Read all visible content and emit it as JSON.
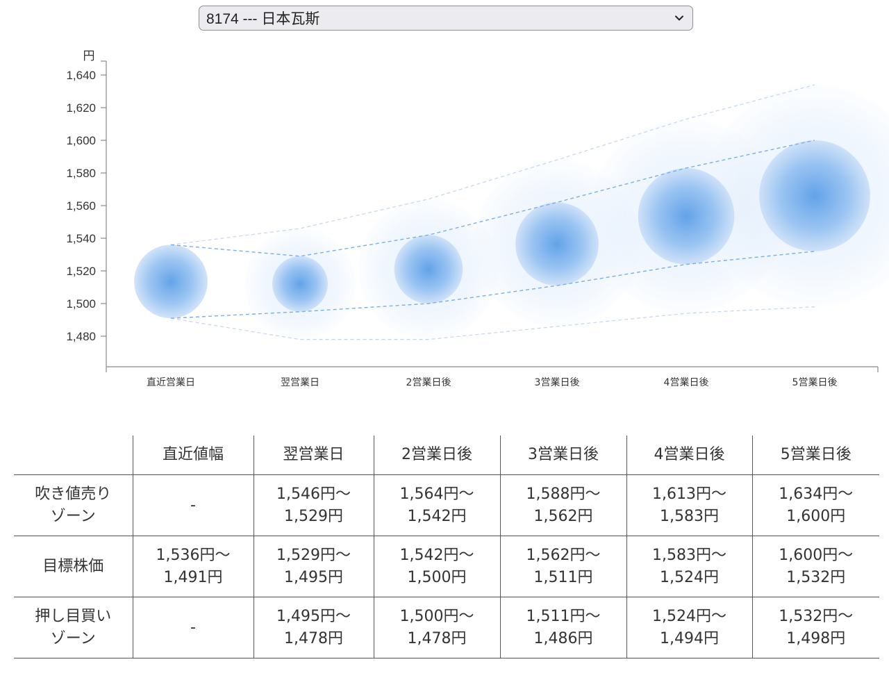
{
  "selector": {
    "value": "8174 --- 日本瓦斯"
  },
  "chart_data": {
    "type": "bubble-range",
    "y_unit": "円",
    "ylim": [
      1470,
      1645
    ],
    "y_ticks": [
      "1,480",
      "1,500",
      "1,520",
      "1,540",
      "1,560",
      "1,580",
      "1,600",
      "1,620",
      "1,640"
    ],
    "y_tick_values": [
      1480,
      1500,
      1520,
      1540,
      1560,
      1580,
      1600,
      1620,
      1640
    ],
    "categories": [
      "直近営業日",
      "翌営業日",
      "2営業日後",
      "3営業日後",
      "4営業日後",
      "5営業日後"
    ],
    "series": [
      {
        "name": "吹き値売りゾーン上限",
        "values": [
          null,
          1546,
          1564,
          1588,
          1613,
          1634
        ]
      },
      {
        "name": "目標株価上限",
        "values": [
          1536,
          1529,
          1542,
          1562,
          1583,
          1600
        ]
      },
      {
        "name": "目標株価下限",
        "values": [
          1491,
          1495,
          1500,
          1511,
          1524,
          1532
        ]
      },
      {
        "name": "押し目買いゾーン下限",
        "values": [
          null,
          1478,
          1478,
          1486,
          1494,
          1498
        ]
      }
    ],
    "colors": {
      "inner": "#5a9de6",
      "outer": "#d8e7fb",
      "line": "#7aaee6",
      "axis": "#888888"
    },
    "grid": false,
    "legend": "none"
  },
  "table": {
    "headers": [
      "",
      "直近値幅",
      "翌営業日",
      "2営業日後",
      "3営業日後",
      "4営業日後",
      "5営業日後"
    ],
    "rows": [
      {
        "label": [
          "吹き値売り",
          "ゾーン"
        ],
        "cells": [
          [
            "-"
          ],
          [
            "1,546円〜",
            "1,529円"
          ],
          [
            "1,564円〜",
            "1,542円"
          ],
          [
            "1,588円〜",
            "1,562円"
          ],
          [
            "1,613円〜",
            "1,583円"
          ],
          [
            "1,634円〜",
            "1,600円"
          ]
        ]
      },
      {
        "label": [
          "目標株価"
        ],
        "cells": [
          [
            "1,536円〜",
            "1,491円"
          ],
          [
            "1,529円〜",
            "1,495円"
          ],
          [
            "1,542円〜",
            "1,500円"
          ],
          [
            "1,562円〜",
            "1,511円"
          ],
          [
            "1,583円〜",
            "1,524円"
          ],
          [
            "1,600円〜",
            "1,532円"
          ]
        ]
      },
      {
        "label": [
          "押し目買い",
          "ゾーン"
        ],
        "cells": [
          [
            "-"
          ],
          [
            "1,495円〜",
            "1,478円"
          ],
          [
            "1,500円〜",
            "1,478円"
          ],
          [
            "1,511円〜",
            "1,486円"
          ],
          [
            "1,524円〜",
            "1,494円"
          ],
          [
            "1,532円〜",
            "1,498円"
          ]
        ]
      }
    ]
  }
}
